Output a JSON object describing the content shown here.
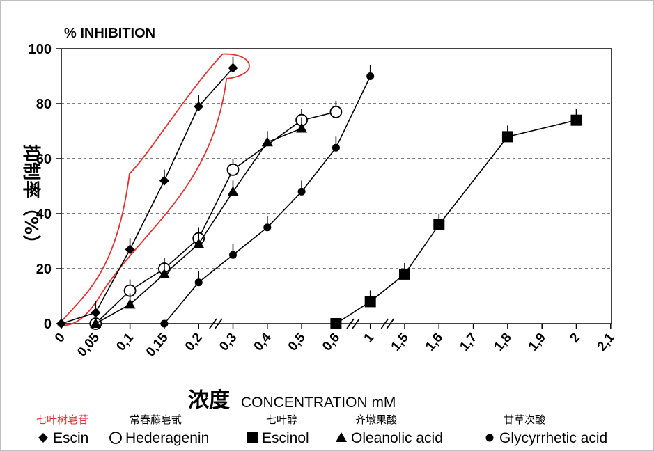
{
  "chart_data": {
    "type": "line",
    "title": "% INHIBITION",
    "ylabel": "抑制率（%）",
    "xlabel_cn": "浓度",
    "xlabel": "CONCENTRATION mM",
    "ylim": [
      0,
      100
    ],
    "yticks": [
      "0",
      "20",
      "40",
      "60",
      "80",
      "100"
    ],
    "x_categories": [
      "0",
      "0,05",
      "0,1",
      "0,15",
      "0,2",
      "0,3",
      "0,4",
      "0,5",
      "0,6",
      "1",
      "1,5",
      "1,6",
      "1,7",
      "1,8",
      "1,9",
      "2",
      "2,1"
    ],
    "axis_breaks": [
      "0,2-0,3",
      "0,6-1",
      "1-1,5"
    ],
    "grid": "dashed horizontal at 20, 40, 60, 80",
    "legend_position": "bottom",
    "highlight": {
      "series": "Escin",
      "color": "#e53030"
    },
    "series": [
      {
        "name": "Escin",
        "name_cn": "七叶树皂苷",
        "marker": "diamond-filled",
        "points": [
          {
            "x": "0",
            "y": 0
          },
          {
            "x": "0,05",
            "y": 4
          },
          {
            "x": "0,1",
            "y": 27
          },
          {
            "x": "0,15",
            "y": 52
          },
          {
            "x": "0,2",
            "y": 79
          },
          {
            "x": "0,3",
            "y": 93
          }
        ]
      },
      {
        "name": "Hederagenin",
        "name_cn": "常春藤皂甙",
        "marker": "circle-open",
        "points": [
          {
            "x": "0,05",
            "y": 0
          },
          {
            "x": "0,1",
            "y": 12
          },
          {
            "x": "0,15",
            "y": 20
          },
          {
            "x": "0,2",
            "y": 31
          },
          {
            "x": "0,3",
            "y": 56
          },
          {
            "x": "0,5",
            "y": 74
          },
          {
            "x": "0,6",
            "y": 77
          }
        ]
      },
      {
        "name": "Escinol",
        "name_cn": "七叶醇",
        "marker": "square-filled",
        "points": [
          {
            "x": "0,6",
            "y": 0
          },
          {
            "x": "1",
            "y": 8
          },
          {
            "x": "1,5",
            "y": 18
          },
          {
            "x": "1,6",
            "y": 36
          },
          {
            "x": "1,8",
            "y": 68
          },
          {
            "x": "2",
            "y": 74
          }
        ]
      },
      {
        "name": "Oleanolic acid",
        "name_cn": "齐墩果酸",
        "marker": "triangle-filled",
        "points": [
          {
            "x": "0,05",
            "y": 0
          },
          {
            "x": "0,1",
            "y": 7
          },
          {
            "x": "0,15",
            "y": 18
          },
          {
            "x": "0,2",
            "y": 29
          },
          {
            "x": "0,3",
            "y": 48
          },
          {
            "x": "0,4",
            "y": 66
          },
          {
            "x": "0,5",
            "y": 71
          }
        ]
      },
      {
        "name": "Glycyrrhetic acid",
        "legend_label": "Glycyrrhetic acid",
        "name_cn": "甘草次酸",
        "marker": "dot-filled",
        "points": [
          {
            "x": "0,15",
            "y": 0
          },
          {
            "x": "0,2",
            "y": 15
          },
          {
            "x": "0,3",
            "y": 25
          },
          {
            "x": "0,4",
            "y": 35
          },
          {
            "x": "0,5",
            "y": 48
          },
          {
            "x": "0,6",
            "y": 64
          },
          {
            "x": "1",
            "y": 90
          }
        ]
      }
    ]
  }
}
